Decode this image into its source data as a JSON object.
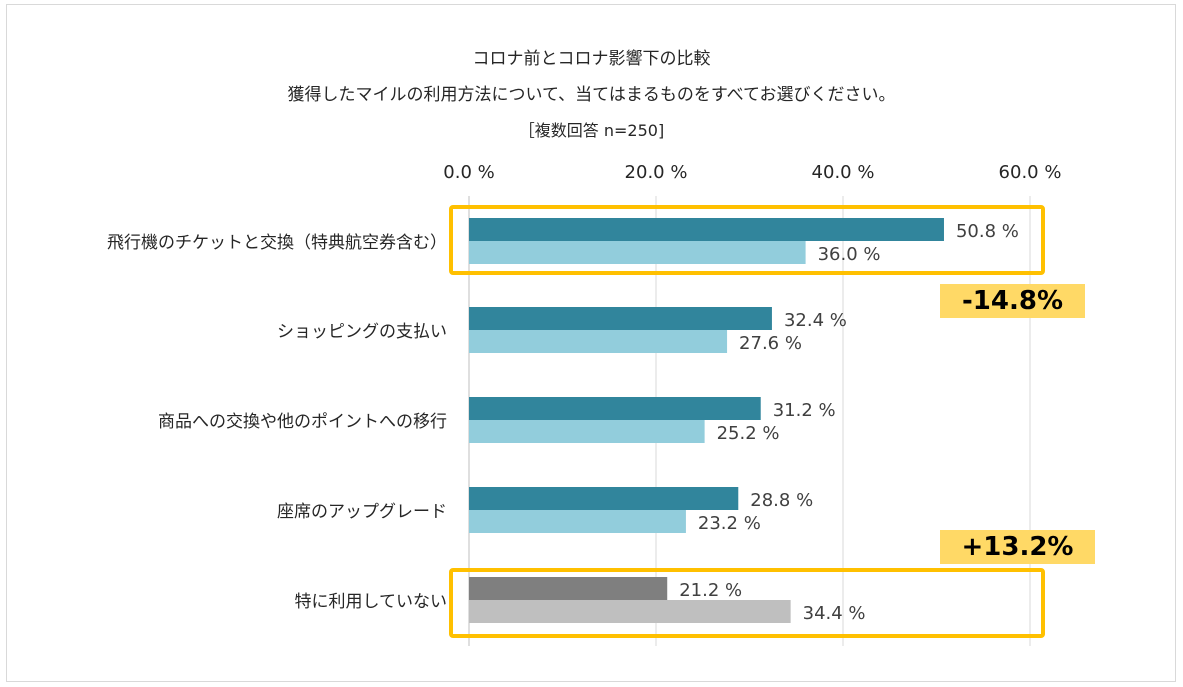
{
  "chart_data": {
    "type": "bar",
    "orientation": "horizontal",
    "title": "コロナ前とコロナ影響下の比較",
    "subtitle": "獲得したマイルの利用方法について、当てはまるものをすべてお選びください。",
    "note": "［複数回答 n=250]",
    "categories": [
      "飛行機のチケットと交換（特典航空券含む）",
      "ショッピングの支払い",
      "商品への交換や他のポイントへの移行",
      "座席のアップグレード",
      "特に利用していない"
    ],
    "series": [
      {
        "name": "コロナ前",
        "values": [
          50.8,
          32.4,
          31.2,
          28.8,
          21.2
        ]
      },
      {
        "name": "コロナ影響下",
        "values": [
          36.0,
          27.6,
          25.2,
          23.2,
          34.4
        ]
      }
    ],
    "value_labels": [
      [
        "50.8 %",
        "36.0 %"
      ],
      [
        "32.4 %",
        "27.6 %"
      ],
      [
        "31.2 %",
        "25.2 %"
      ],
      [
        "28.8 %",
        "23.2 %"
      ],
      [
        "21.2 %",
        "34.4 %"
      ]
    ],
    "xticks": [
      "0.0 %",
      "20.0 %",
      "40.0 %",
      "60.0 %"
    ],
    "xlim": [
      0,
      60
    ],
    "xaxis_position": "top",
    "grid": true,
    "colors": {
      "series1": "#31859c",
      "series2": "#92cddc",
      "series1_highlight": "#7f7f7f",
      "series2_highlight": "#bfbfbf",
      "highlight_box": "#ffc000",
      "badge": "#ffd966"
    },
    "annotations": [
      {
        "text": "-14.8%",
        "category_index": 0
      },
      {
        "text": "+13.2%",
        "category_index": 4
      }
    ],
    "highlighted_categories": [
      0,
      4
    ]
  }
}
